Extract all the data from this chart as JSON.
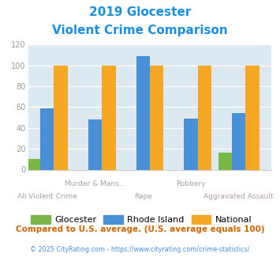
{
  "title_line1": "2019 Glocester",
  "title_line2": "Violent Crime Comparison",
  "title_color": "#1a8fe0",
  "cat_labels_top": [
    "",
    "Murder & Mans...",
    "",
    "Robbery",
    ""
  ],
  "cat_labels_bottom": [
    "All Violent Crime",
    "",
    "Rape",
    "",
    "Aggravated Assault"
  ],
  "glocester": [
    10,
    0,
    0,
    0,
    16
  ],
  "rhode_island": [
    59,
    48,
    109,
    49,
    54
  ],
  "national": [
    100,
    100,
    100,
    100,
    100
  ],
  "glocester_color": "#7ab648",
  "rhode_island_color": "#4a90d9",
  "national_color": "#f5a623",
  "bg_color": "#dce9f0",
  "ylim": [
    0,
    120
  ],
  "yticks": [
    0,
    20,
    40,
    60,
    80,
    100,
    120
  ],
  "ylabel_color": "#999999",
  "xlabel_color": "#b0a0a0",
  "legend_labels": [
    "Glocester",
    "Rhode Island",
    "National"
  ],
  "footnote": "Compared to U.S. average. (U.S. average equals 100)",
  "copyright": "© 2025 CityRating.com - https://www.cityrating.com/crime-statistics/",
  "footnote_color": "#cc6600",
  "copyright_color": "#4a90d9"
}
